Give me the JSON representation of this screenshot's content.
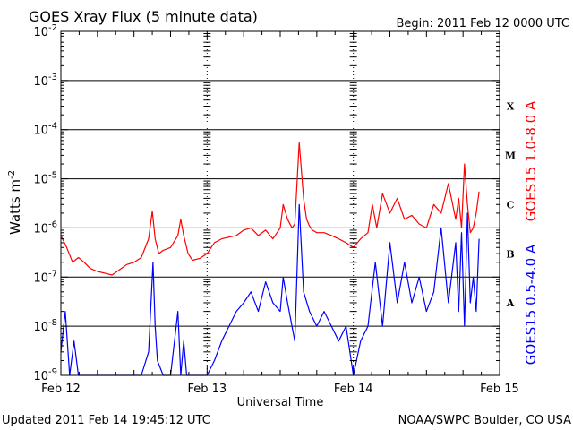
{
  "chart_data": {
    "type": "line",
    "title": "GOES Xray Flux (5 minute data)",
    "begin_label": "Begin:  2011 Feb 12 0000 UTC",
    "xlabel": "Universal Time",
    "ylabel_base": "Watts m",
    "ylabel_exp": "-2",
    "y_scale": "log",
    "ylim": [
      1e-09,
      0.01
    ],
    "xlim_days": [
      0,
      3
    ],
    "x_tick_labels": [
      "Feb 12",
      "Feb 13",
      "Feb 14",
      "Feb 15"
    ],
    "x_tick_days": [
      0,
      1,
      2,
      3
    ],
    "y_tick_exponents": [
      -2,
      -3,
      -4,
      -5,
      -6,
      -7,
      -8,
      -9
    ],
    "y_tick_base": "10",
    "flare_classes": [
      {
        "label": "X",
        "exp": -4
      },
      {
        "label": "M",
        "exp": -5
      },
      {
        "label": "C",
        "exp": -6
      },
      {
        "label": "B",
        "exp": -7
      },
      {
        "label": "A",
        "exp": -8
      }
    ],
    "grid_exponents": [
      -3,
      -4,
      -5,
      -6,
      -7,
      -8
    ],
    "series": [
      {
        "name": "GOES15 1.0-8.0 A",
        "color": "#ff0000",
        "x_days": [
          0,
          0.04,
          0.08,
          0.12,
          0.16,
          0.2,
          0.25,
          0.3,
          0.35,
          0.4,
          0.45,
          0.5,
          0.55,
          0.6,
          0.625,
          0.645,
          0.67,
          0.7,
          0.75,
          0.8,
          0.82,
          0.84,
          0.87,
          0.9,
          0.95,
          1.0,
          1.05,
          1.1,
          1.15,
          1.2,
          1.25,
          1.3,
          1.35,
          1.4,
          1.45,
          1.5,
          1.52,
          1.55,
          1.58,
          1.6,
          1.63,
          1.66,
          1.68,
          1.7,
          1.72,
          1.75,
          1.8,
          1.85,
          1.9,
          1.95,
          2.0,
          2.05,
          2.1,
          2.13,
          2.16,
          2.2,
          2.25,
          2.3,
          2.35,
          2.4,
          2.45,
          2.5,
          2.55,
          2.6,
          2.65,
          2.7,
          2.72,
          2.74,
          2.76,
          2.78,
          2.8,
          2.82,
          2.84,
          2.86
        ],
        "values": [
          7e-07,
          4e-07,
          2e-07,
          2.5e-07,
          2e-07,
          1.5e-07,
          1.3e-07,
          1.2e-07,
          1.1e-07,
          1.4e-07,
          1.8e-07,
          2e-07,
          2.5e-07,
          6e-07,
          2.2e-06,
          6e-07,
          3e-07,
          3.5e-07,
          4e-07,
          7e-07,
          1.5e-06,
          7e-07,
          3e-07,
          2.2e-07,
          2.4e-07,
          3e-07,
          5e-07,
          6e-07,
          6.5e-07,
          7e-07,
          9e-07,
          1e-06,
          7e-07,
          9e-07,
          6e-07,
          1e-06,
          3e-06,
          1.5e-06,
          1e-06,
          1.2e-06,
          5.5e-05,
          4e-06,
          1.5e-06,
          1.1e-06,
          9e-07,
          8e-07,
          8e-07,
          7e-07,
          6e-07,
          5e-07,
          4e-07,
          6e-07,
          8e-07,
          3e-06,
          1e-06,
          5e-06,
          2e-06,
          4e-06,
          1.5e-06,
          1.8e-06,
          1.2e-06,
          1e-06,
          3e-06,
          2e-06,
          8e-06,
          1.5e-06,
          4e-06,
          1e-06,
          2e-05,
          3e-06,
          8e-07,
          1e-06,
          2e-06,
          5.5e-06
        ]
      },
      {
        "name": "GOES15 0.5-4.0 A",
        "color": "#0000ff",
        "x_days": [
          0,
          0.03,
          0.06,
          0.09,
          0.12,
          0.15,
          0.2,
          0.25,
          0.3,
          0.35,
          0.4,
          0.45,
          0.5,
          0.55,
          0.6,
          0.63,
          0.645,
          0.66,
          0.7,
          0.75,
          0.8,
          0.82,
          0.84,
          0.86,
          0.9,
          0.95,
          1.0,
          1.05,
          1.1,
          1.15,
          1.2,
          1.25,
          1.3,
          1.35,
          1.4,
          1.45,
          1.5,
          1.52,
          1.55,
          1.58,
          1.6,
          1.63,
          1.66,
          1.7,
          1.75,
          1.8,
          1.85,
          1.9,
          1.95,
          2.0,
          2.05,
          2.1,
          2.15,
          2.2,
          2.25,
          2.3,
          2.35,
          2.4,
          2.45,
          2.5,
          2.55,
          2.6,
          2.65,
          2.7,
          2.72,
          2.74,
          2.76,
          2.78,
          2.8,
          2.82,
          2.84,
          2.86
        ],
        "values": [
          3e-09,
          2e-08,
          1e-09,
          5e-09,
          1e-09,
          1e-09,
          1e-09,
          1e-09,
          1e-09,
          1e-09,
          1e-09,
          1e-09,
          1e-09,
          1e-09,
          3e-09,
          2e-07,
          1e-08,
          2e-09,
          1e-09,
          1e-09,
          2e-08,
          1e-09,
          5e-09,
          1e-09,
          1e-09,
          1e-09,
          1e-09,
          2e-09,
          5e-09,
          1e-08,
          2e-08,
          3e-08,
          5e-08,
          2e-08,
          8e-08,
          3e-08,
          2e-08,
          1e-07,
          3e-08,
          1e-08,
          5e-09,
          3e-06,
          5e-08,
          2e-08,
          1e-08,
          2e-08,
          1e-08,
          5e-09,
          1e-08,
          1e-09,
          5e-09,
          1e-08,
          2e-07,
          1e-08,
          5e-07,
          3e-08,
          2e-07,
          3e-08,
          1e-07,
          2e-08,
          5e-08,
          1e-06,
          3e-08,
          5e-07,
          2e-08,
          8e-07,
          1e-08,
          2e-06,
          3e-08,
          1e-07,
          2e-08,
          6e-07
        ]
      }
    ],
    "grid": true
  },
  "footer": {
    "updated": "Updated 2011 Feb 14 19:45:12 UTC",
    "credit": "NOAA/SWPC Boulder, CO USA"
  }
}
